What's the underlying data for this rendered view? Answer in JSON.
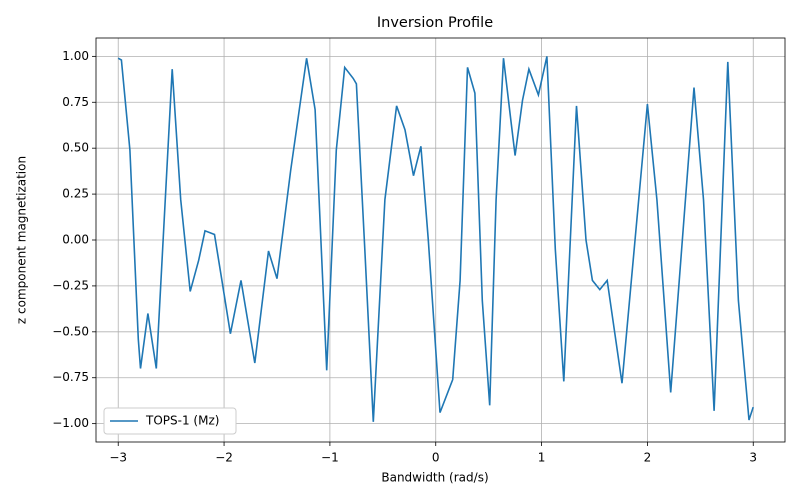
{
  "chart_data": {
    "type": "line",
    "title": "Inversion Profile",
    "x_label": "Bandwidth (rad/s)",
    "y_label": "z component magnetization",
    "xlim": [
      -3.21,
      3.3
    ],
    "ylim": [
      -1.1,
      1.1
    ],
    "xticks": [
      {
        "value": -3,
        "label": "−3"
      },
      {
        "value": -2,
        "label": "−2"
      },
      {
        "value": -1,
        "label": "−1"
      },
      0,
      1,
      2,
      3
    ],
    "yticks": [
      {
        "value": -1,
        "label": "−1.00"
      },
      {
        "value": -0.75,
        "label": "−0.75"
      },
      {
        "value": -0.5,
        "label": "−0.50"
      },
      {
        "value": -0.25,
        "label": "−0.25"
      },
      {
        "value": 0,
        "label": "0.00"
      },
      {
        "value": 0.25,
        "label": "0.25"
      },
      {
        "value": 0.5,
        "label": "0.50"
      },
      {
        "value": 0.75,
        "label": "0.75"
      },
      {
        "value": 1,
        "label": "1.00"
      }
    ],
    "grid": true,
    "legend": "lower left",
    "x": [
      -3.0,
      -2.97,
      -2.89,
      -2.81,
      -2.79,
      -2.72,
      -2.64,
      -2.49,
      -2.41,
      -2.32,
      -2.24,
      -2.18,
      -2.09,
      -2.02,
      -1.94,
      -1.84,
      -1.71,
      -1.58,
      -1.5,
      -1.37,
      -1.22,
      -1.14,
      -1.03,
      -0.94,
      -0.86,
      -0.78,
      -0.75,
      -0.67,
      -0.59,
      -0.48,
      -0.37,
      -0.29,
      -0.21,
      -0.14,
      -0.07,
      0.04,
      0.16,
      0.23,
      0.3,
      0.37,
      0.44,
      0.51,
      0.57,
      0.64,
      0.71,
      0.75,
      0.82,
      0.88,
      0.97,
      1.05,
      1.13,
      1.21,
      1.33,
      1.42,
      1.48,
      1.55,
      1.62,
      1.76,
      2.0,
      2.09,
      2.22,
      2.44,
      2.53,
      2.63,
      2.76,
      2.86,
      2.96,
      3.0
    ],
    "series": [
      {
        "name": "TOPS-1 (Mz)",
        "color": "#1f77b4",
        "values": [
          0.99,
          0.98,
          0.49,
          -0.54,
          -0.7,
          -0.4,
          -0.7,
          0.93,
          0.22,
          -0.28,
          -0.11,
          0.05,
          0.03,
          -0.22,
          -0.51,
          -0.22,
          -0.67,
          -0.06,
          -0.21,
          0.38,
          0.99,
          0.71,
          -0.71,
          0.49,
          0.94,
          0.88,
          0.85,
          -0.05,
          -0.99,
          0.22,
          0.73,
          0.6,
          0.35,
          0.51,
          0.0,
          -0.94,
          -0.76,
          -0.22,
          0.94,
          0.8,
          -0.33,
          -0.9,
          0.22,
          0.99,
          0.65,
          0.46,
          0.76,
          0.93,
          0.79,
          1.0,
          -0.05,
          -0.77,
          0.73,
          0.0,
          -0.22,
          -0.27,
          -0.22,
          -0.78,
          0.74,
          0.22,
          -0.83,
          0.83,
          0.22,
          -0.93,
          0.97,
          -0.33,
          -0.98,
          -0.91
        ]
      }
    ]
  }
}
